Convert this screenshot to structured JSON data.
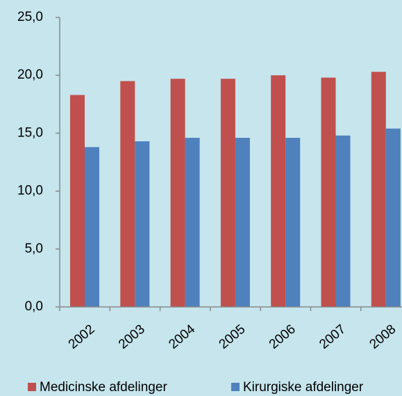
{
  "chart_data": {
    "type": "bar",
    "categories": [
      "2002",
      "2003",
      "2004",
      "2005",
      "2006",
      "2007",
      "2008"
    ],
    "series": [
      {
        "name": "Medicinske afdelinger",
        "color": "#c0504d",
        "values": [
          18.3,
          19.5,
          19.7,
          19.7,
          20.0,
          19.8,
          20.3
        ]
      },
      {
        "name": "Kirurgiske afdelinger",
        "color": "#4f81bd",
        "values": [
          13.8,
          14.3,
          14.6,
          14.6,
          14.6,
          14.8,
          15.4
        ]
      }
    ],
    "ylim": [
      0,
      25
    ],
    "yticks": [
      {
        "value": 0,
        "label": "0,0"
      },
      {
        "value": 5,
        "label": "5,0"
      },
      {
        "value": 10,
        "label": "10,0"
      },
      {
        "value": 15,
        "label": "15,0"
      },
      {
        "value": 20,
        "label": "20,0"
      },
      {
        "value": 25,
        "label": "25,0"
      }
    ],
    "grid": false,
    "legend": "bottom"
  }
}
